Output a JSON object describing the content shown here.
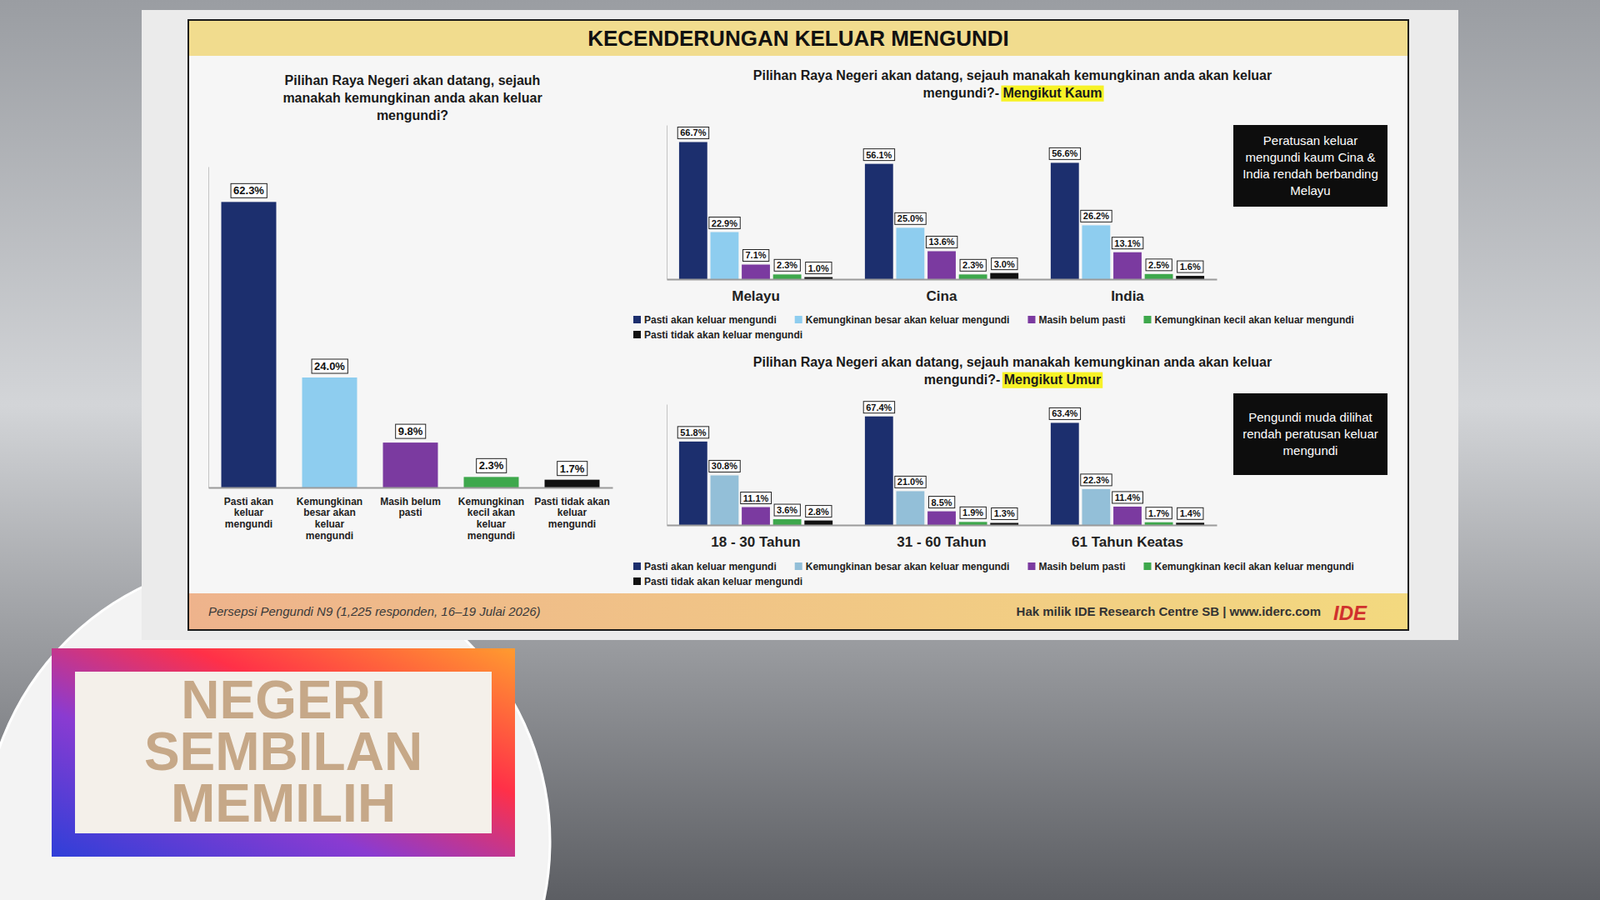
{
  "page": {
    "title": "KECENDERUNGAN KELUAR MENGUNDI",
    "source": "Persepsi Pengundi N9 (1,225 responden, 16–19 Julai 2026)",
    "owner": "Hak milik IDE Research Centre SB | www.iderc.com",
    "logo": "IDE",
    "overlay": "NEGERI SEMBILAN MEMILIH"
  },
  "chart_data": [
    {
      "type": "bar",
      "title": "Pilihan Raya Negeri akan datang, sejauh manakah kemungkinan anda akan keluar mengundi?",
      "categories": [
        "Pasti akan keluar mengundi",
        "Kemungkinan besar akan keluar mengundi",
        "Masih belum pasti",
        "Kemungkinan kecil akan keluar mengundi",
        "Pasti tidak akan keluar mengundi"
      ],
      "values": [
        62.3,
        24.0,
        9.8,
        2.3,
        1.7
      ],
      "value_labels": [
        "62.3%",
        "24.0%",
        "9.8%",
        "2.3%",
        "1.7%"
      ],
      "colors": [
        "#1c2f6e",
        "#8ecdef",
        "#7b3aa0",
        "#3ea84c",
        "#111111"
      ],
      "ylim": [
        0,
        70
      ],
      "data_labels": true,
      "tick_labels": "x"
    },
    {
      "type": "bar",
      "title": "Pilihan Raya Negeri akan datang, sejauh manakah kemungkinan anda akan keluar mengundi?-",
      "subtitle": "Mengikut Kaum",
      "categories": [
        "Melayu",
        "Cina",
        "India"
      ],
      "series": [
        {
          "name": "Pasti akan keluar mengundi",
          "color": "#1c2f6e",
          "values": [
            66.7,
            56.1,
            56.6
          ],
          "value_labels": [
            "66.7%",
            "56.1%",
            "56.6%"
          ]
        },
        {
          "name": "Kemungkinan besar akan keluar mengundi",
          "color": "#8ecdef",
          "values": [
            22.9,
            25.0,
            26.2
          ],
          "value_labels": [
            "22.9%",
            "25.0%",
            "26.2%"
          ]
        },
        {
          "name": "Masih belum pasti",
          "color": "#7b3aa0",
          "values": [
            7.1,
            13.6,
            13.1
          ],
          "value_labels": [
            "7.1%",
            "13.6%",
            "13.1%"
          ]
        },
        {
          "name": "Kemungkinan kecil akan keluar mengundi",
          "color": "#3ea84c",
          "values": [
            2.3,
            2.3,
            2.5
          ],
          "value_labels": [
            "2.3%",
            "2.3%",
            "2.5%"
          ]
        },
        {
          "name": "Pasti tidak akan keluar mengundi",
          "color": "#111111",
          "values": [
            1.0,
            3.0,
            1.6
          ],
          "value_labels": [
            "1.0%",
            "3.0%",
            "1.6%"
          ]
        }
      ],
      "ylim": [
        0,
        75
      ],
      "data_labels": true,
      "tick_labels": "x",
      "legend": "bottom",
      "annotations": [
        "Peratusan keluar mengundi kaum Cina & India rendah berbanding Melayu"
      ]
    },
    {
      "type": "bar",
      "title": "Pilihan Raya Negeri akan datang, sejauh manakah kemungkinan anda akan keluar mengundi?-",
      "subtitle": "Mengikut Umur",
      "categories": [
        "18 - 30 Tahun",
        "31 - 60 Tahun",
        "61 Tahun Keatas"
      ],
      "series": [
        {
          "name": "Pasti akan keluar mengundi",
          "color": "#1c2f6e",
          "values": [
            51.8,
            67.4,
            63.4
          ],
          "value_labels": [
            "51.8%",
            "67.4%",
            "63.4%"
          ]
        },
        {
          "name": "Kemungkinan besar akan keluar mengundi",
          "color": "#93bfd8",
          "values": [
            30.8,
            21.0,
            22.3
          ],
          "value_labels": [
            "30.8%",
            "21.0%",
            "22.3%"
          ]
        },
        {
          "name": "Masih belum pasti",
          "color": "#7b3aa0",
          "values": [
            11.1,
            8.5,
            11.4
          ],
          "value_labels": [
            "11.1%",
            "8.5%",
            "11.4%"
          ]
        },
        {
          "name": "Kemungkinan kecil akan keluar mengundi",
          "color": "#3ea84c",
          "values": [
            3.6,
            1.9,
            1.7
          ],
          "value_labels": [
            "3.6%",
            "1.9%",
            "1.7%"
          ]
        },
        {
          "name": "Pasti tidak akan keluar mengundi",
          "color": "#111111",
          "values": [
            2.8,
            1.3,
            1.4
          ],
          "value_labels": [
            "2.8%",
            "1.3%",
            "1.4%"
          ]
        }
      ],
      "ylim": [
        0,
        75
      ],
      "data_labels": true,
      "tick_labels": "x",
      "legend": "bottom",
      "annotations": [
        "Pengundi muda dilihat rendah peratusan keluar mengundi"
      ]
    }
  ]
}
